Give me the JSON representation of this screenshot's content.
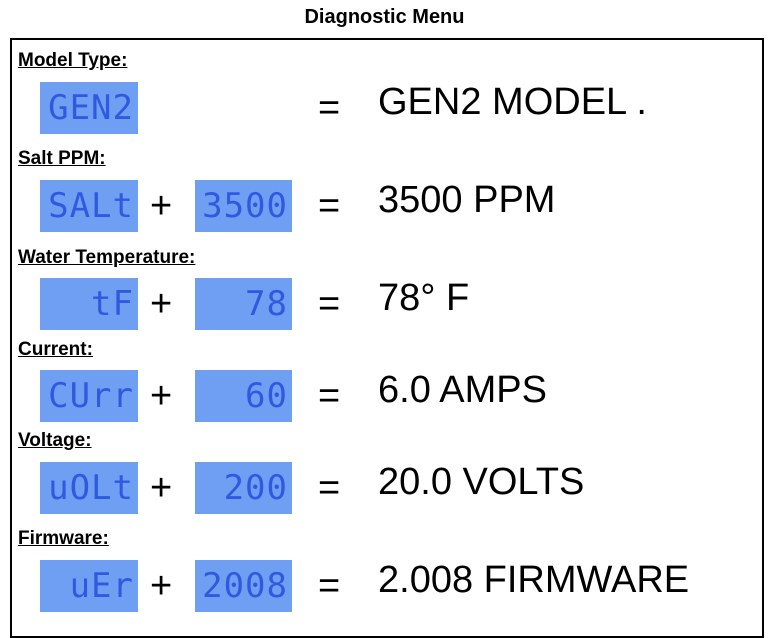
{
  "title": "Diagnostic Menu",
  "sections": [
    {
      "label": "Model Type:",
      "code": "GEN2",
      "result": "GEN2 MODEL ."
    },
    {
      "label": "Salt PPM:",
      "code": "SALt",
      "value": "3500",
      "result": "3500 PPM"
    },
    {
      "label": "Water Temperature:",
      "code": "tF",
      "value": "78",
      "result": "78° F"
    },
    {
      "label": "Current:",
      "code": "CUrr",
      "value": "60",
      "result": "6.0 AMPS"
    },
    {
      "label": "Voltage:",
      "code": "uOLt",
      "value": "200",
      "result": "20.0 VOLTS"
    },
    {
      "label": "Firmware:",
      "code": "uEr",
      "value": "2008",
      "result": "2.008 FIRMWARE"
    }
  ]
}
